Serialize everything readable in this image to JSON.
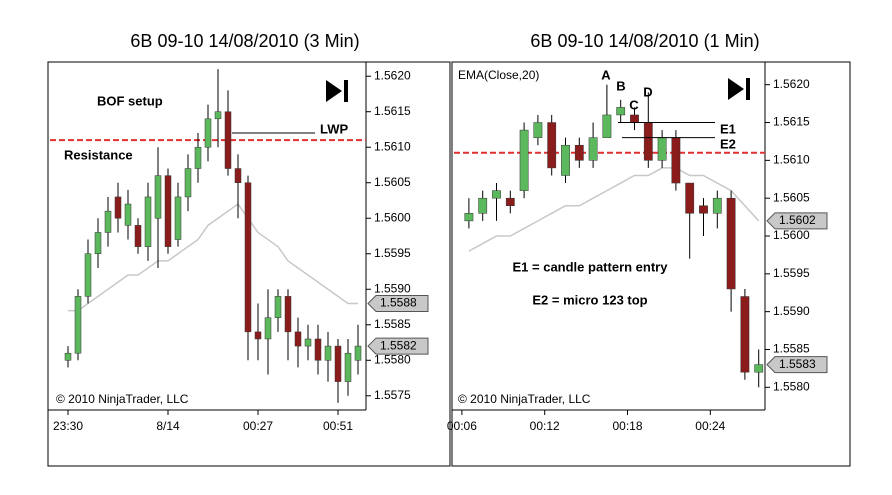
{
  "chart_data": [
    {
      "type": "candlestick",
      "title": "6B 09-10  14/08/2010 (3 Min)",
      "categories": [
        "23:30",
        null,
        null,
        null,
        null,
        null,
        null,
        null,
        null,
        null,
        "8/14",
        null,
        null,
        null,
        null,
        null,
        null,
        null,
        null,
        "00:27",
        null,
        null,
        null,
        null,
        null,
        null,
        null,
        "00:51",
        null,
        null
      ],
      "open": [
        1.558,
        1.5581,
        1.5589,
        1.5595,
        1.5598,
        1.5603,
        1.5599,
        1.5599,
        1.5596,
        1.56,
        1.5606,
        1.5597,
        1.5603,
        1.5607,
        1.561,
        1.5614,
        1.5615,
        1.5607,
        1.5605,
        1.5584,
        1.5583,
        1.5586,
        1.5589,
        1.5584,
        1.5582,
        1.5583,
        1.558,
        1.5582,
        1.5577,
        1.558
      ],
      "high": [
        1.5582,
        1.559,
        1.5597,
        1.56,
        1.5603,
        1.5605,
        1.5604,
        1.56,
        1.5605,
        1.561,
        1.5607,
        1.5605,
        1.5609,
        1.5612,
        1.5616,
        1.5621,
        1.5618,
        1.5609,
        1.5606,
        1.5588,
        1.559,
        1.559,
        1.559,
        1.5586,
        1.5585,
        1.5585,
        1.5584,
        1.5583,
        1.5583,
        1.5585
      ],
      "low": [
        1.5579,
        1.558,
        1.5588,
        1.5593,
        1.5596,
        1.5598,
        1.5597,
        1.5595,
        1.5594,
        1.5593,
        1.5595,
        1.5596,
        1.5601,
        1.5605,
        1.5608,
        1.561,
        1.5606,
        1.56,
        1.558,
        1.558,
        1.5578,
        1.5584,
        1.558,
        1.5579,
        1.558,
        1.5578,
        1.5577,
        1.5574,
        1.5575,
        1.5578
      ],
      "close": [
        1.5581,
        1.5589,
        1.5595,
        1.5598,
        1.5601,
        1.56,
        1.5602,
        1.5596,
        1.5603,
        1.5606,
        1.5596,
        1.5603,
        1.5607,
        1.561,
        1.5614,
        1.5615,
        1.5607,
        1.5605,
        1.5584,
        1.5583,
        1.5586,
        1.5589,
        1.5584,
        1.5582,
        1.5583,
        1.558,
        1.5582,
        1.5577,
        1.5581,
        1.5582
      ],
      "up_color": "#5cb85c",
      "down_color": "#8b1c1c",
      "ema": {
        "color": "#c8c8c8",
        "values": [
          1.5587,
          1.5587,
          1.5588,
          1.5589,
          1.559,
          1.5591,
          1.5592,
          1.5592,
          1.5593,
          1.5594,
          1.5594,
          1.5595,
          1.5596,
          1.5597,
          1.5599,
          1.56,
          1.5601,
          1.5602,
          1.56,
          1.5598,
          1.5597,
          1.5596,
          1.5594,
          1.5593,
          1.5592,
          1.5591,
          1.559,
          1.5589,
          1.5588,
          1.5588
        ]
      },
      "price_markers": [
        1.5588,
        1.5582
      ],
      "reference_line": {
        "value": 1.5611,
        "color": "#e03030",
        "label": "Resistance"
      },
      "levels": [
        {
          "label": "LWP",
          "value": 1.5612
        }
      ],
      "annotations": [
        "BOF setup"
      ],
      "watermark": "© 2010 NinjaTrader, LLC",
      "ylim": [
        1.5573,
        1.5622
      ],
      "yticks": [
        1.5575,
        {
          "value": 1.558,
          "label": "1.5580"
        },
        1.5585,
        {
          "value": 1.559,
          "label": "1.5590"
        },
        1.5595,
        {
          "value": 1.56,
          "label": "1.5600"
        },
        1.5605,
        {
          "value": 1.561,
          "label": "1.5610"
        },
        1.5615,
        {
          "value": 1.562,
          "label": "1.5620"
        }
      ]
    },
    {
      "type": "candlestick",
      "title": "6B 09-10  14/08/2010 (1 Min)",
      "categories": [
        "00:06",
        null,
        null,
        null,
        null,
        null,
        "00:12",
        null,
        null,
        null,
        null,
        null,
        "00:18",
        null,
        null,
        null,
        null,
        null,
        "00:24",
        null,
        null,
        null
      ],
      "open": [
        1.5602,
        1.5603,
        1.5605,
        1.5605,
        1.5606,
        1.5613,
        1.5615,
        1.5608,
        1.5612,
        1.561,
        1.5613,
        1.5616,
        1.5616,
        1.5615,
        1.561,
        1.5613,
        1.5607,
        1.5604,
        1.5603,
        1.5605,
        1.5592,
        1.5582
      ],
      "high": [
        1.5605,
        1.5606,
        1.5607,
        1.5606,
        1.5615,
        1.5616,
        1.5616,
        1.5613,
        1.5613,
        1.5615,
        1.562,
        1.5618,
        1.5617,
        1.5619,
        1.5614,
        1.5614,
        1.5607,
        1.5605,
        1.5606,
        1.5606,
        1.5593,
        1.5585
      ],
      "low": [
        1.5601,
        1.5602,
        1.5602,
        1.5603,
        1.5605,
        1.5612,
        1.5608,
        1.5607,
        1.5609,
        1.5609,
        1.5613,
        1.5615,
        1.5614,
        1.5609,
        1.5609,
        1.5606,
        1.5597,
        1.56,
        1.5601,
        1.559,
        1.5581,
        1.558
      ],
      "close": [
        1.5603,
        1.5605,
        1.5606,
        1.5604,
        1.5614,
        1.5615,
        1.5609,
        1.5612,
        1.561,
        1.5613,
        1.5616,
        1.5617,
        1.5615,
        1.561,
        1.5613,
        1.5607,
        1.5603,
        1.5603,
        1.5605,
        1.5593,
        1.5582,
        1.5583
      ],
      "up_color": "#5cb85c",
      "down_color": "#8b1c1c",
      "ema": {
        "name": "EMA(Close,20)",
        "color": "#c8c8c8",
        "values": [
          1.5598,
          1.5599,
          1.56,
          1.56,
          1.5601,
          1.5602,
          1.5603,
          1.5604,
          1.5604,
          1.5605,
          1.5606,
          1.5607,
          1.5608,
          1.5608,
          1.5609,
          1.5609,
          1.5608,
          1.5608,
          1.5607,
          1.5606,
          1.5604,
          1.5602
        ]
      },
      "price_markers": [
        1.5602,
        1.5583
      ],
      "reference_line": {
        "value": 1.5611,
        "color": "#e03030"
      },
      "levels": [
        {
          "label": "E1",
          "value": 1.5615
        },
        {
          "label": "E2",
          "value": 1.5613
        }
      ],
      "annotations": [
        "A",
        "B",
        "C",
        "D",
        "E1 = candle pattern entry",
        "E2 = micro 123 top"
      ],
      "watermark": "© 2010 NinjaTrader, LLC",
      "ylim": [
        1.5577,
        1.5623
      ],
      "yticks": [
        {
          "value": 1.558,
          "label": "1.5580"
        },
        1.5585,
        {
          "value": 1.559,
          "label": "1.5590"
        },
        1.5595,
        {
          "value": 1.56,
          "label": "1.5600"
        },
        1.5605,
        {
          "value": 1.561,
          "label": "1.5610"
        },
        1.5615,
        {
          "value": 1.562,
          "label": "1.5620"
        }
      ]
    }
  ]
}
